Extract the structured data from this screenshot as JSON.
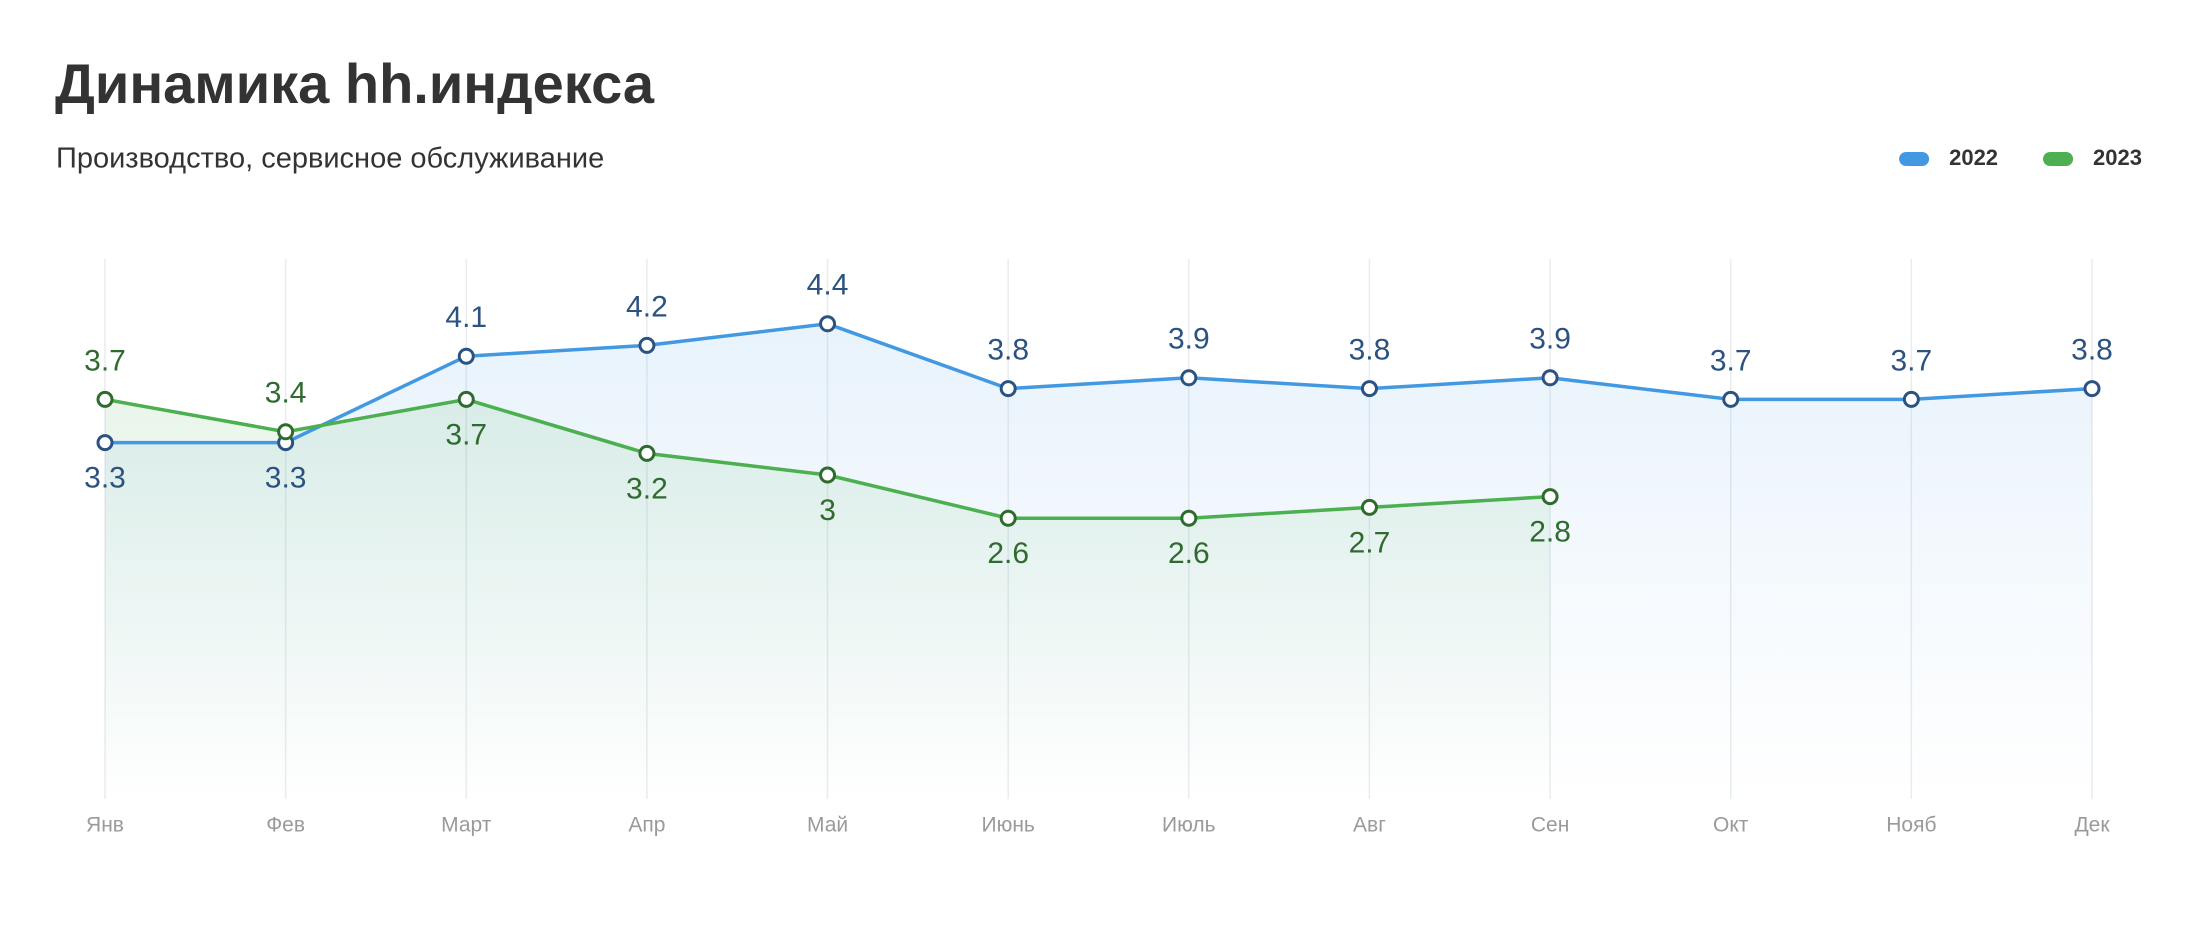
{
  "chart_data": {
    "type": "line",
    "title": "Динамика hh.индекса",
    "subtitle": "Производство, сервисное обслуживание",
    "categories": [
      "Янв",
      "Фев",
      "Март",
      "Апр",
      "Май",
      "Июнь",
      "Июль",
      "Авг",
      "Сен",
      "Окт",
      "Нояб",
      "Дек"
    ],
    "series": [
      {
        "name": "2022",
        "color": "#4299e1",
        "values": [
          3.3,
          3.3,
          4.1,
          4.2,
          4.4,
          3.8,
          3.9,
          3.8,
          3.9,
          3.7,
          3.7,
          3.8
        ]
      },
      {
        "name": "2023",
        "color": "#4caf50",
        "values": [
          3.7,
          3.4,
          3.7,
          3.2,
          3,
          2.6,
          2.6,
          2.7,
          2.8,
          null,
          null,
          null
        ]
      }
    ],
    "ylim": [
      0,
      5
    ],
    "legend": "top-right"
  }
}
